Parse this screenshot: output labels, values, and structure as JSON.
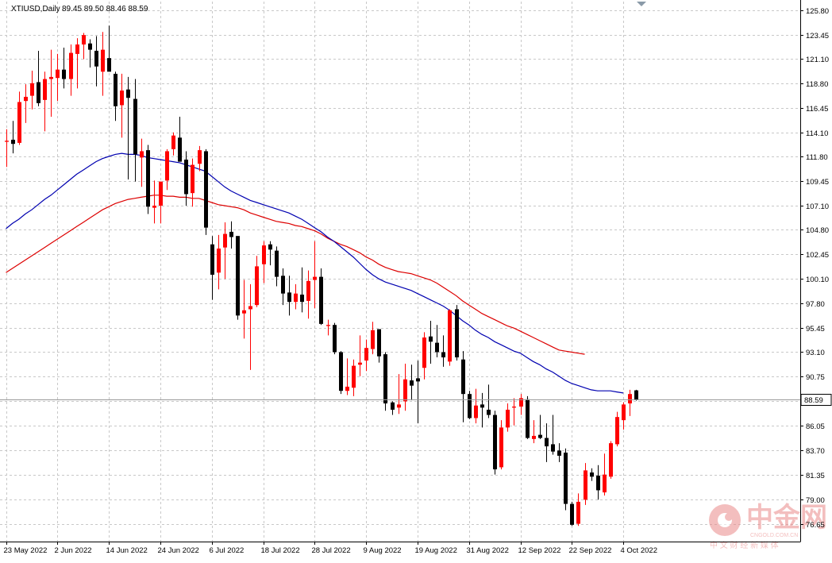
{
  "header": {
    "symbol": "XTIUSD,Daily",
    "ohlc_text": "89.45 89.50 88.46 88.59"
  },
  "current_price_label": "88.59",
  "watermark": {
    "cn_name": "中金网",
    "domain": "CNGOLD.COM.CN",
    "slogan": "中 文 财 经 新 媒 体"
  },
  "colors": {
    "bull": "#ff0000",
    "bear": "#000000",
    "ma_fast": "#0000b0",
    "ma_slow": "#dd0000",
    "grid": "#c8c8c8",
    "axis": "#000000",
    "price_line": "#999999",
    "watermark": "#ea8a8a"
  },
  "chart_data": {
    "type": "candlestick",
    "symbol": "XTIUSD",
    "timeframe": "Daily",
    "ylim": [
      75.0,
      126.6
    ],
    "y_ticks": [
      125.8,
      123.45,
      121.1,
      118.8,
      116.45,
      114.1,
      111.8,
      109.45,
      107.1,
      104.8,
      102.45,
      100.1,
      97.8,
      95.45,
      93.1,
      90.75,
      88.4,
      86.05,
      83.7,
      81.35,
      79.0,
      76.65
    ],
    "y_tick_labels": [
      "125.80",
      "123.45",
      "121.10",
      "118.80",
      "116.45",
      "114.10",
      "111.80",
      "109.45",
      "107.10",
      "104.80",
      "102.45",
      "100.10",
      "97.80",
      "95.45",
      "93.10",
      "90.75",
      "",
      "86.05",
      "83.70",
      "81.35",
      "79.00",
      "76.65"
    ],
    "x_ticks": [
      {
        "bar": 0,
        "label": "23 May 2022"
      },
      {
        "bar": 8,
        "label": "2 Jun 2022"
      },
      {
        "bar": 16,
        "label": "14 Jun 2022"
      },
      {
        "bar": 24,
        "label": "24 Jun 2022"
      },
      {
        "bar": 32,
        "label": "6 Jul 2022"
      },
      {
        "bar": 40,
        "label": "18 Jul 2022"
      },
      {
        "bar": 48,
        "label": "28 Jul 2022"
      },
      {
        "bar": 56,
        "label": "9 Aug 2022"
      },
      {
        "bar": 64,
        "label": "19 Aug 2022"
      },
      {
        "bar": 72,
        "label": "31 Aug 2022"
      },
      {
        "bar": 80,
        "label": "12 Sep 2022"
      },
      {
        "bar": 88,
        "label": "22 Sep 2022"
      },
      {
        "bar": 96,
        "label": "4 Oct 2022"
      }
    ],
    "last_price": 88.59,
    "candles": [
      [
        113.2,
        114.4,
        110.8,
        113.3
      ],
      [
        113.4,
        115.2,
        112.1,
        113.0
      ],
      [
        113.1,
        118.0,
        112.9,
        117.0
      ],
      [
        117.1,
        118.7,
        115.0,
        117.5
      ],
      [
        117.6,
        120.0,
        116.3,
        118.8
      ],
      [
        118.9,
        121.9,
        116.6,
        116.9
      ],
      [
        117.2,
        119.9,
        114.2,
        119.2
      ],
      [
        119.2,
        122.0,
        115.6,
        119.4
      ],
      [
        119.3,
        121.6,
        117.1,
        120.1
      ],
      [
        120.1,
        122.2,
        118.3,
        119.2
      ],
      [
        119.2,
        122.5,
        117.6,
        121.7
      ],
      [
        121.6,
        123.1,
        118.3,
        122.5
      ],
      [
        122.5,
        123.6,
        121.1,
        123.4
      ],
      [
        122.6,
        123.0,
        120.3,
        122.0
      ],
      [
        121.9,
        123.3,
        118.5,
        120.4
      ],
      [
        119.9,
        123.7,
        117.6,
        122.0
      ],
      [
        121.2,
        124.3,
        119.9,
        119.9
      ],
      [
        119.7,
        119.9,
        115.2,
        116.6
      ],
      [
        116.7,
        119.7,
        113.6,
        118.1
      ],
      [
        118.2,
        119.4,
        109.6,
        117.4
      ],
      [
        117.3,
        119.2,
        109.4,
        112.0
      ],
      [
        111.7,
        113.5,
        108.9,
        112.3
      ],
      [
        112.4,
        112.9,
        106.3,
        107.0
      ],
      [
        106.9,
        109.5,
        105.4,
        107.1
      ],
      [
        107.1,
        109.4,
        105.4,
        109.4
      ],
      [
        109.5,
        112.5,
        108.6,
        112.3
      ],
      [
        112.5,
        114.1,
        111.9,
        113.8
      ],
      [
        113.6,
        115.6,
        111.3,
        111.3
      ],
      [
        111.5,
        112.3,
        107.1,
        108.2
      ],
      [
        108.3,
        111.6,
        107.0,
        111.0
      ],
      [
        111.1,
        112.8,
        110.4,
        112.4
      ],
      [
        112.3,
        112.5,
        104.3,
        105.0
      ],
      [
        103.4,
        104.2,
        98.1,
        100.5
      ],
      [
        100.7,
        104.3,
        99.1,
        103.0
      ],
      [
        103.1,
        105.5,
        100.1,
        104.4
      ],
      [
        104.6,
        105.6,
        103.0,
        104.1
      ],
      [
        104.2,
        104.2,
        96.2,
        96.6
      ],
      [
        96.8,
        100.0,
        94.4,
        97.1
      ],
      [
        97.2,
        99.6,
        91.4,
        97.5
      ],
      [
        97.6,
        102.3,
        97.4,
        101.3
      ],
      [
        101.5,
        103.7,
        99.7,
        103.3
      ],
      [
        103.4,
        103.7,
        101.4,
        102.9
      ],
      [
        102.8,
        103.2,
        99.4,
        100.3
      ],
      [
        100.4,
        101.1,
        97.6,
        98.7
      ],
      [
        98.8,
        100.4,
        96.6,
        97.9
      ],
      [
        97.9,
        99.6,
        97.2,
        98.7
      ],
      [
        98.6,
        101.2,
        96.9,
        97.9
      ],
      [
        98.0,
        100.9,
        96.3,
        99.9
      ],
      [
        100.0,
        103.7,
        97.3,
        100.3
      ],
      [
        100.3,
        101.1,
        95.7,
        95.8
      ],
      [
        95.6,
        96.2,
        94.7,
        95.7
      ],
      [
        95.7,
        95.9,
        92.9,
        93.1
      ],
      [
        93.1,
        93.2,
        89.1,
        89.4
      ],
      [
        89.4,
        92.5,
        89.0,
        89.8
      ],
      [
        89.7,
        92.4,
        88.9,
        91.8
      ],
      [
        91.9,
        94.7,
        90.8,
        92.1
      ],
      [
        92.3,
        94.3,
        91.3,
        93.5
      ],
      [
        93.4,
        96.0,
        92.9,
        95.2
      ],
      [
        95.3,
        95.3,
        92.1,
        92.7
      ],
      [
        92.9,
        93.1,
        87.5,
        88.2
      ],
      [
        88.3,
        88.4,
        87.1,
        87.6
      ],
      [
        87.8,
        91.0,
        87.2,
        88.1
      ],
      [
        88.4,
        92.0,
        87.5,
        90.5
      ],
      [
        90.4,
        91.9,
        88.5,
        89.9
      ],
      [
        90.6,
        92.3,
        86.3,
        90.3
      ],
      [
        91.6,
        95.0,
        90.5,
        94.5
      ],
      [
        94.6,
        96.1,
        92.0,
        94.1
      ],
      [
        94.0,
        95.7,
        92.6,
        93.1
      ],
      [
        93.1,
        94.7,
        91.7,
        92.6
      ],
      [
        92.2,
        97.2,
        91.8,
        97.1
      ],
      [
        97.2,
        97.6,
        92.3,
        92.6
      ],
      [
        92.4,
        93.2,
        86.4,
        89.1
      ],
      [
        89.1,
        89.4,
        86.7,
        86.8
      ],
      [
        86.8,
        89.6,
        86.3,
        88.0
      ],
      [
        88.1,
        89.2,
        85.9,
        87.8
      ],
      [
        87.6,
        90.0,
        86.8,
        87.1
      ],
      [
        87.1,
        87.5,
        81.4,
        81.9
      ],
      [
        82.1,
        86.6,
        81.9,
        85.9
      ],
      [
        85.9,
        88.2,
        85.5,
        87.6
      ],
      [
        87.8,
        88.7,
        86.1,
        87.9
      ],
      [
        87.9,
        89.1,
        87.1,
        88.7
      ],
      [
        88.6,
        88.9,
        84.8,
        84.9
      ],
      [
        84.8,
        86.6,
        84.4,
        85.1
      ],
      [
        85.2,
        87.1,
        84.8,
        84.9
      ],
      [
        84.9,
        86.3,
        82.6,
        84.1
      ],
      [
        84.3,
        87.1,
        83.3,
        83.6
      ],
      [
        83.7,
        84.4,
        82.6,
        83.2
      ],
      [
        83.5,
        83.9,
        78.0,
        78.6
      ],
      [
        78.6,
        78.8,
        76.5,
        76.6
      ],
      [
        76.7,
        79.6,
        76.5,
        78.8
      ],
      [
        79.0,
        82.5,
        78.5,
        81.8
      ],
      [
        81.6,
        82.0,
        80.8,
        81.2
      ],
      [
        81.3,
        82.3,
        79.0,
        79.9
      ],
      [
        79.7,
        83.4,
        79.4,
        81.4
      ],
      [
        81.2,
        84.6,
        81.0,
        84.4
      ],
      [
        84.3,
        87.4,
        84.1,
        86.9
      ],
      [
        86.6,
        88.3,
        85.7,
        88.1
      ],
      [
        88.2,
        89.5,
        87.0,
        89.1
      ],
      [
        89.45,
        89.5,
        88.46,
        88.59
      ]
    ],
    "ma_fast": {
      "name": "",
      "values": [
        104.9,
        105.4,
        105.8,
        106.3,
        106.7,
        107.2,
        107.7,
        108.1,
        108.6,
        109.1,
        109.6,
        110.1,
        110.5,
        110.9,
        111.3,
        111.6,
        111.8,
        112.0,
        112.1,
        112.0,
        112.0,
        111.9,
        111.7,
        111.6,
        111.5,
        111.4,
        111.3,
        111.2,
        111.0,
        110.8,
        110.6,
        110.4,
        109.9,
        109.4,
        108.9,
        108.5,
        108.2,
        107.9,
        107.6,
        107.4,
        107.2,
        107.0,
        106.8,
        106.6,
        106.4,
        106.1,
        105.8,
        105.4,
        105.0,
        104.6,
        104.1,
        103.7,
        103.2,
        102.7,
        102.2,
        101.6,
        101.0,
        100.5,
        100.1,
        99.8,
        99.6,
        99.4,
        99.2,
        99.0,
        98.7,
        98.4,
        98.1,
        97.8,
        97.5,
        97.1,
        96.6,
        96.1,
        95.7,
        95.2,
        94.8,
        94.5,
        94.1,
        93.8,
        93.5,
        93.2,
        93.0,
        92.6,
        92.2,
        91.9,
        91.5,
        91.2,
        90.8,
        90.4,
        90.1,
        89.9,
        89.7,
        89.5,
        89.4,
        89.4,
        89.4,
        89.3,
        89.2
      ]
    },
    "ma_slow": {
      "name": "",
      "values": [
        100.7,
        101.1,
        101.5,
        101.9,
        102.3,
        102.7,
        103.1,
        103.5,
        103.9,
        104.3,
        104.7,
        105.1,
        105.5,
        105.9,
        106.3,
        106.7,
        107.0,
        107.3,
        107.5,
        107.7,
        107.8,
        107.9,
        108.0,
        108.1,
        108.1,
        108.0,
        108.0,
        107.9,
        107.9,
        107.8,
        107.8,
        107.6,
        107.4,
        107.2,
        107.1,
        107.0,
        106.9,
        106.7,
        106.4,
        106.2,
        106.0,
        105.8,
        105.6,
        105.5,
        105.4,
        105.2,
        105.1,
        104.9,
        104.7,
        104.4,
        104.0,
        103.7,
        103.4,
        103.2,
        102.9,
        102.6,
        102.2,
        101.9,
        101.5,
        101.2,
        101.0,
        100.8,
        100.7,
        100.6,
        100.4,
        100.2,
        100.0,
        99.7,
        99.3,
        98.9,
        98.5,
        98.0,
        97.6,
        97.2,
        96.8,
        96.5,
        96.2,
        95.9,
        95.6,
        95.4,
        95.1,
        94.8,
        94.5,
        94.2,
        93.9,
        93.6,
        93.3,
        93.2,
        93.1,
        93.0,
        92.9
      ]
    }
  }
}
